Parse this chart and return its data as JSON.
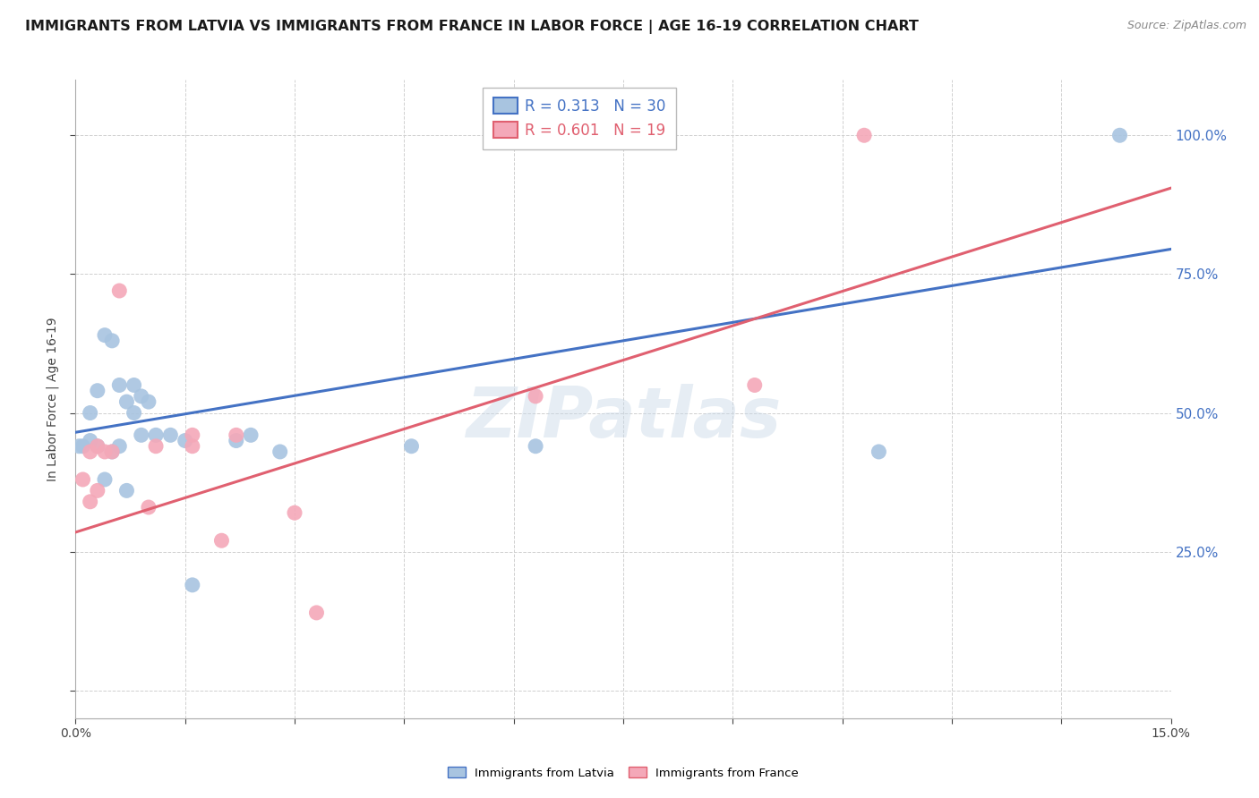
{
  "title": "IMMIGRANTS FROM LATVIA VS IMMIGRANTS FROM FRANCE IN LABOR FORCE | AGE 16-19 CORRELATION CHART",
  "source": "Source: ZipAtlas.com",
  "ylabel_label": "In Labor Force | Age 16-19",
  "xlim": [
    0.0,
    0.15
  ],
  "ylim": [
    -0.05,
    1.1
  ],
  "xticks": [
    0.0,
    0.015,
    0.03,
    0.045,
    0.06,
    0.075,
    0.09,
    0.105,
    0.12,
    0.135,
    0.15
  ],
  "ytick_positions": [
    0.0,
    0.25,
    0.5,
    0.75,
    1.0
  ],
  "right_ytick_labels": [
    "100.0%",
    "75.0%",
    "50.0%",
    "25.0%",
    ""
  ],
  "latvia_color": "#a8c4e0",
  "france_color": "#f4a8b8",
  "line_latvia_color": "#4472c4",
  "line_france_color": "#e06070",
  "legend_r_latvia": "0.313",
  "legend_n_latvia": "30",
  "legend_r_france": "0.601",
  "legend_n_france": "19",
  "watermark": "ZIPatlas",
  "latvia_x": [
    0.0005,
    0.001,
    0.002,
    0.002,
    0.003,
    0.003,
    0.004,
    0.004,
    0.005,
    0.005,
    0.006,
    0.006,
    0.007,
    0.007,
    0.008,
    0.008,
    0.009,
    0.009,
    0.01,
    0.011,
    0.013,
    0.015,
    0.016,
    0.022,
    0.024,
    0.028,
    0.046,
    0.063,
    0.11,
    0.143
  ],
  "latvia_y": [
    0.44,
    0.44,
    0.45,
    0.5,
    0.44,
    0.54,
    0.38,
    0.64,
    0.43,
    0.63,
    0.44,
    0.55,
    0.52,
    0.36,
    0.55,
    0.5,
    0.46,
    0.53,
    0.52,
    0.46,
    0.46,
    0.45,
    0.19,
    0.45,
    0.46,
    0.43,
    0.44,
    0.44,
    0.43,
    1.0
  ],
  "france_x": [
    0.001,
    0.002,
    0.002,
    0.003,
    0.003,
    0.004,
    0.005,
    0.006,
    0.01,
    0.011,
    0.016,
    0.016,
    0.02,
    0.022,
    0.03,
    0.033,
    0.063,
    0.093,
    0.108
  ],
  "france_y": [
    0.38,
    0.34,
    0.43,
    0.36,
    0.44,
    0.43,
    0.43,
    0.72,
    0.33,
    0.44,
    0.44,
    0.46,
    0.27,
    0.46,
    0.32,
    0.14,
    0.53,
    0.55,
    1.0
  ],
  "latvia_line_x": [
    0.0,
    0.15
  ],
  "latvia_line_y": [
    0.465,
    0.795
  ],
  "france_line_x": [
    0.0,
    0.15
  ],
  "france_line_y": [
    0.285,
    0.905
  ],
  "background_color": "#ffffff",
  "grid_color": "#d0d0d0",
  "title_fontsize": 11.5,
  "axis_label_fontsize": 10,
  "tick_fontsize": 10,
  "legend_fontsize": 12,
  "source_fontsize": 9
}
